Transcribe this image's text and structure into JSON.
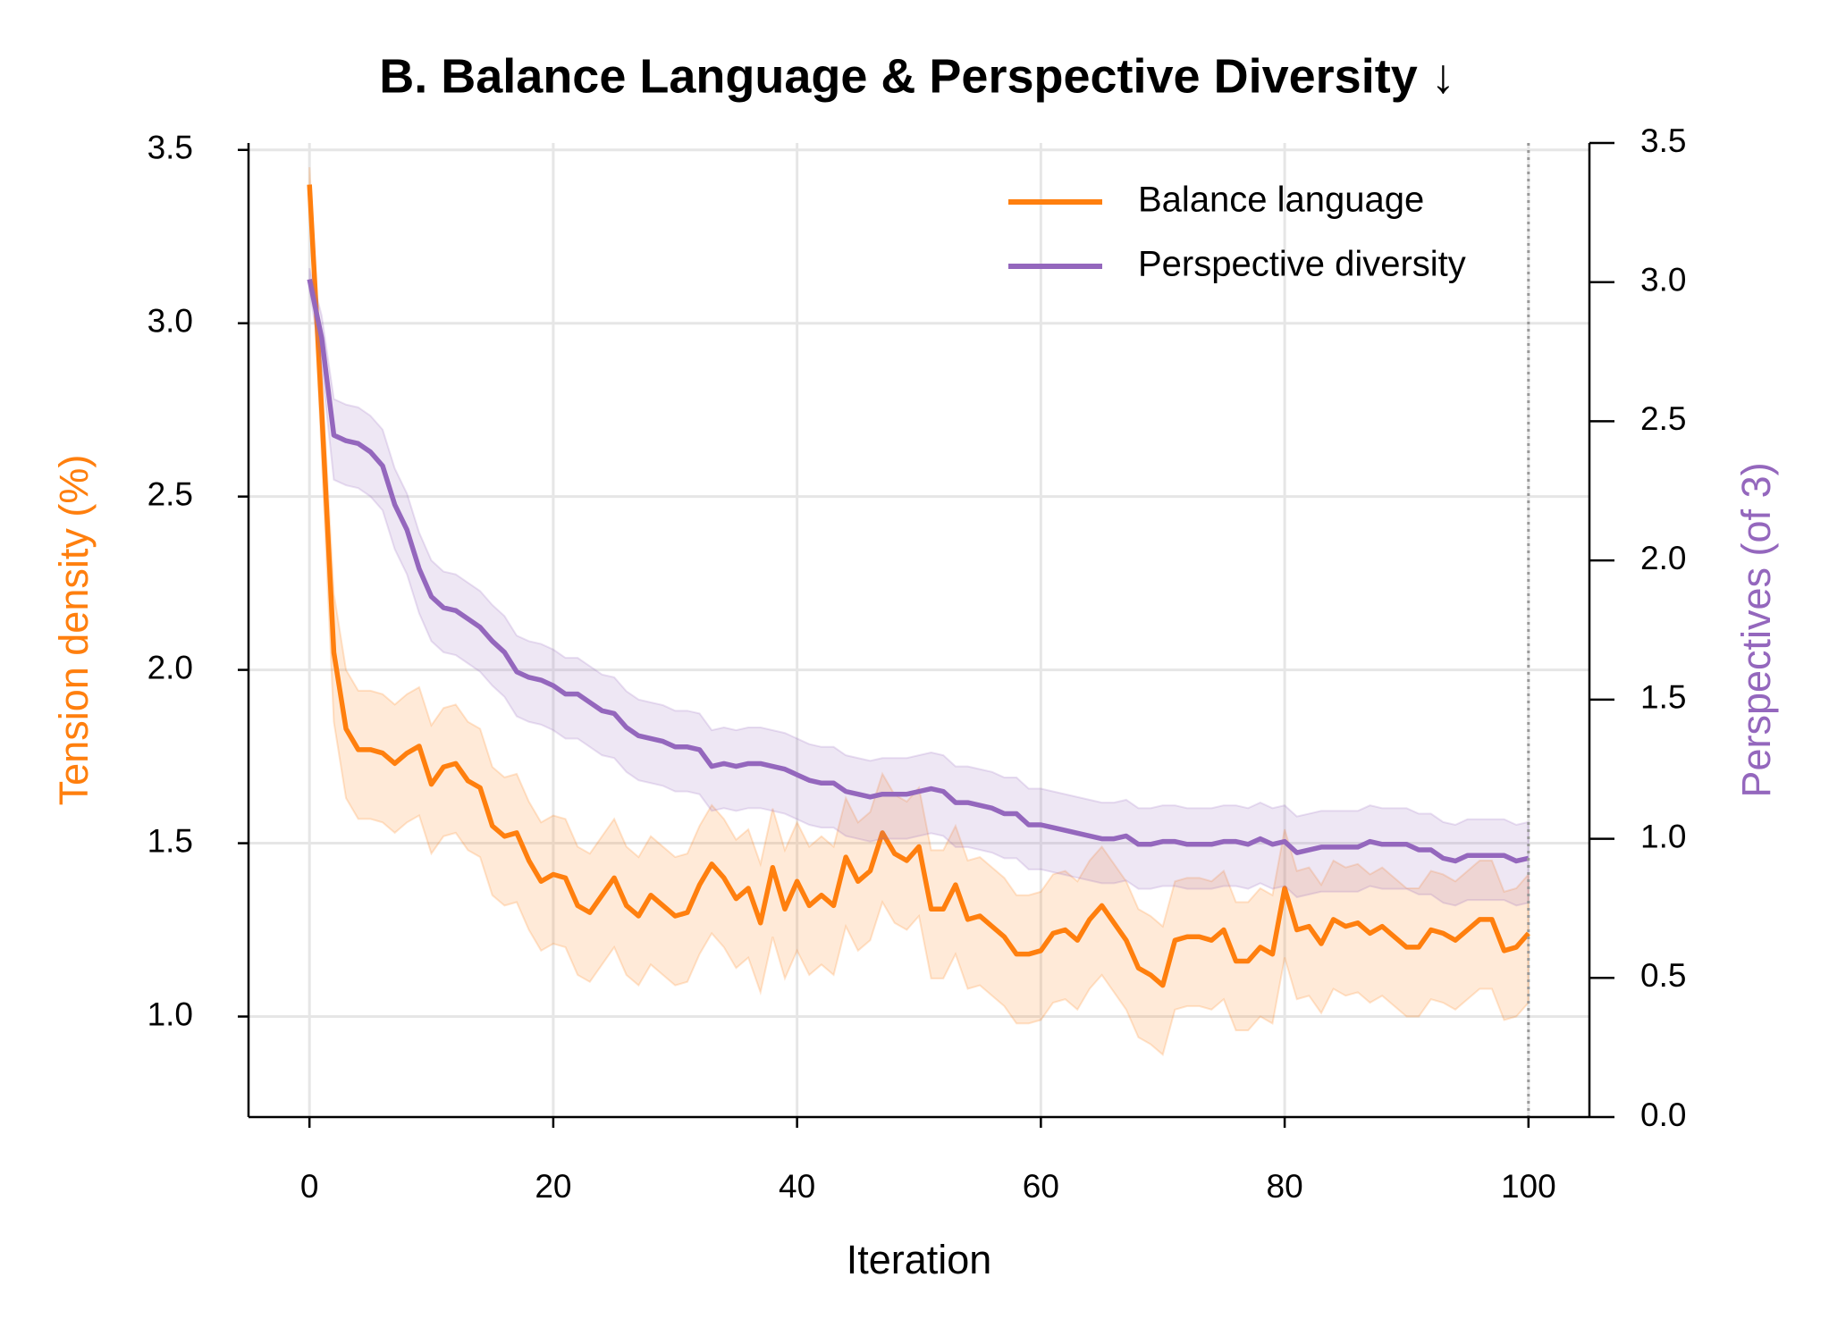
{
  "chart_data": {
    "type": "line",
    "title": "B. Balance Language & Perspective Diversity ↓",
    "xlabel": "Iteration",
    "ylabel": "Tension density (%)",
    "y2label": "Perspectives (of 3)",
    "x": [
      0,
      1,
      2,
      3,
      4,
      5,
      6,
      7,
      8,
      9,
      10,
      11,
      12,
      13,
      14,
      15,
      16,
      17,
      18,
      19,
      20,
      21,
      22,
      23,
      24,
      25,
      26,
      27,
      28,
      29,
      30,
      31,
      32,
      33,
      34,
      35,
      36,
      37,
      38,
      39,
      40,
      41,
      42,
      43,
      44,
      45,
      46,
      47,
      48,
      49,
      50,
      51,
      52,
      53,
      54,
      55,
      56,
      57,
      58,
      59,
      60,
      61,
      62,
      63,
      64,
      65,
      66,
      67,
      68,
      69,
      70,
      71,
      72,
      73,
      74,
      75,
      76,
      77,
      78,
      79,
      80,
      81,
      82,
      83,
      84,
      85,
      86,
      87,
      88,
      89,
      90,
      91,
      92,
      93,
      94,
      95,
      96,
      97,
      98,
      99,
      100
    ],
    "xlim": [
      -5,
      105
    ],
    "xticks": [
      0,
      20,
      40,
      60,
      80,
      100
    ],
    "ylim": [
      0.71,
      3.52
    ],
    "yticks": [
      {
        "value": 1.0,
        "label": "1.0"
      },
      1.5,
      {
        "value": 2.0,
        "label": "2.0"
      },
      2.5,
      {
        "value": 3.0,
        "label": "3.0"
      },
      3.5
    ],
    "y2lim": [
      0,
      3.5
    ],
    "y2ticks": [
      {
        "value": 0,
        "label": "0.0"
      },
      0.5,
      {
        "value": 1.0,
        "label": "1.0"
      },
      1.5,
      {
        "value": 2.0,
        "label": "2.0"
      },
      2.5,
      {
        "value": 3.0,
        "label": "3.0"
      },
      3.5
    ],
    "grid": true,
    "legend": "upper right",
    "vline_x": 100,
    "series": [
      {
        "name": "Balance language",
        "color": "#ff7f0e",
        "axis": "y",
        "values": [
          3.4,
          2.75,
          2.05,
          1.83,
          1.77,
          1.77,
          1.76,
          1.73,
          1.76,
          1.78,
          1.67,
          1.72,
          1.73,
          1.68,
          1.66,
          1.55,
          1.52,
          1.53,
          1.45,
          1.39,
          1.41,
          1.4,
          1.32,
          1.3,
          1.35,
          1.4,
          1.32,
          1.29,
          1.35,
          1.32,
          1.29,
          1.3,
          1.38,
          1.44,
          1.4,
          1.34,
          1.37,
          1.27,
          1.43,
          1.31,
          1.39,
          1.32,
          1.35,
          1.32,
          1.46,
          1.39,
          1.42,
          1.53,
          1.47,
          1.45,
          1.49,
          1.31,
          1.31,
          1.38,
          1.28,
          1.29,
          1.26,
          1.23,
          1.18,
          1.18,
          1.19,
          1.24,
          1.25,
          1.22,
          1.28,
          1.32,
          1.27,
          1.22,
          1.14,
          1.12,
          1.09,
          1.22,
          1.23,
          1.23,
          1.22,
          1.25,
          1.16,
          1.16,
          1.2,
          1.18,
          1.37,
          1.25,
          1.26,
          1.21,
          1.28,
          1.26,
          1.27,
          1.24,
          1.26,
          1.23,
          1.2,
          1.2,
          1.25,
          1.24,
          1.22,
          1.25,
          1.28,
          1.28,
          1.19,
          1.2,
          1.24
        ],
        "upper": [
          3.45,
          2.85,
          2.22,
          2.0,
          1.94,
          1.94,
          1.93,
          1.9,
          1.93,
          1.95,
          1.84,
          1.89,
          1.9,
          1.85,
          1.83,
          1.72,
          1.69,
          1.7,
          1.62,
          1.56,
          1.58,
          1.57,
          1.49,
          1.47,
          1.52,
          1.57,
          1.49,
          1.46,
          1.52,
          1.49,
          1.46,
          1.47,
          1.55,
          1.61,
          1.57,
          1.51,
          1.54,
          1.44,
          1.6,
          1.48,
          1.56,
          1.49,
          1.52,
          1.49,
          1.63,
          1.56,
          1.59,
          1.7,
          1.64,
          1.62,
          1.66,
          1.48,
          1.48,
          1.55,
          1.45,
          1.46,
          1.43,
          1.4,
          1.35,
          1.35,
          1.36,
          1.41,
          1.42,
          1.39,
          1.45,
          1.49,
          1.44,
          1.39,
          1.31,
          1.29,
          1.26,
          1.39,
          1.4,
          1.4,
          1.39,
          1.42,
          1.33,
          1.33,
          1.37,
          1.35,
          1.54,
          1.42,
          1.43,
          1.38,
          1.45,
          1.43,
          1.44,
          1.41,
          1.43,
          1.4,
          1.37,
          1.37,
          1.42,
          1.41,
          1.39,
          1.42,
          1.45,
          1.45,
          1.36,
          1.37,
          1.41
        ],
        "lower": [
          3.35,
          2.62,
          1.85,
          1.63,
          1.57,
          1.57,
          1.56,
          1.53,
          1.56,
          1.58,
          1.47,
          1.52,
          1.53,
          1.48,
          1.46,
          1.35,
          1.32,
          1.33,
          1.25,
          1.19,
          1.21,
          1.2,
          1.12,
          1.1,
          1.15,
          1.2,
          1.12,
          1.09,
          1.15,
          1.12,
          1.09,
          1.1,
          1.18,
          1.24,
          1.2,
          1.14,
          1.17,
          1.07,
          1.23,
          1.11,
          1.19,
          1.12,
          1.15,
          1.12,
          1.26,
          1.19,
          1.22,
          1.33,
          1.27,
          1.25,
          1.29,
          1.11,
          1.11,
          1.18,
          1.08,
          1.09,
          1.06,
          1.03,
          0.98,
          0.98,
          0.99,
          1.04,
          1.05,
          1.02,
          1.08,
          1.12,
          1.07,
          1.02,
          0.94,
          0.92,
          0.89,
          1.02,
          1.03,
          1.03,
          1.02,
          1.05,
          0.96,
          0.96,
          1.0,
          0.98,
          1.17,
          1.05,
          1.06,
          1.01,
          1.08,
          1.06,
          1.07,
          1.04,
          1.06,
          1.03,
          1.0,
          1.0,
          1.05,
          1.04,
          1.02,
          1.05,
          1.08,
          1.08,
          0.99,
          1.0,
          1.04
        ]
      },
      {
        "name": "Perspective diversity",
        "color": "#9467bd",
        "axis": "y2",
        "values": [
          3.01,
          2.8,
          2.45,
          2.43,
          2.42,
          2.39,
          2.34,
          2.2,
          2.11,
          1.97,
          1.87,
          1.83,
          1.82,
          1.79,
          1.76,
          1.71,
          1.67,
          1.6,
          1.58,
          1.57,
          1.55,
          1.52,
          1.52,
          1.49,
          1.46,
          1.45,
          1.4,
          1.37,
          1.36,
          1.35,
          1.33,
          1.33,
          1.32,
          1.26,
          1.27,
          1.26,
          1.27,
          1.27,
          1.26,
          1.25,
          1.23,
          1.21,
          1.2,
          1.2,
          1.17,
          1.16,
          1.15,
          1.16,
          1.16,
          1.16,
          1.17,
          1.18,
          1.17,
          1.13,
          1.13,
          1.12,
          1.11,
          1.09,
          1.09,
          1.05,
          1.05,
          1.04,
          1.03,
          1.02,
          1.01,
          1.0,
          1.0,
          1.01,
          0.98,
          0.98,
          0.99,
          0.99,
          0.98,
          0.98,
          0.98,
          0.99,
          0.99,
          0.98,
          1.0,
          0.98,
          0.99,
          0.95,
          0.96,
          0.97,
          0.97,
          0.97,
          0.97,
          0.99,
          0.98,
          0.98,
          0.98,
          0.96,
          0.96,
          0.93,
          0.92,
          0.94,
          0.94,
          0.94,
          0.94,
          0.92,
          0.93
        ],
        "upper": [
          3.05,
          2.88,
          2.58,
          2.56,
          2.55,
          2.52,
          2.47,
          2.33,
          2.24,
          2.1,
          2.0,
          1.96,
          1.95,
          1.92,
          1.89,
          1.84,
          1.8,
          1.73,
          1.71,
          1.7,
          1.68,
          1.65,
          1.65,
          1.62,
          1.59,
          1.58,
          1.53,
          1.5,
          1.49,
          1.48,
          1.46,
          1.46,
          1.45,
          1.39,
          1.4,
          1.39,
          1.4,
          1.4,
          1.39,
          1.38,
          1.36,
          1.34,
          1.33,
          1.33,
          1.3,
          1.29,
          1.28,
          1.29,
          1.29,
          1.29,
          1.3,
          1.31,
          1.3,
          1.26,
          1.26,
          1.25,
          1.24,
          1.22,
          1.22,
          1.18,
          1.18,
          1.17,
          1.16,
          1.15,
          1.14,
          1.13,
          1.13,
          1.14,
          1.11,
          1.11,
          1.12,
          1.12,
          1.11,
          1.11,
          1.11,
          1.12,
          1.12,
          1.11,
          1.13,
          1.11,
          1.12,
          1.08,
          1.09,
          1.1,
          1.1,
          1.1,
          1.1,
          1.12,
          1.11,
          1.11,
          1.11,
          1.09,
          1.09,
          1.06,
          1.05,
          1.07,
          1.07,
          1.07,
          1.07,
          1.05,
          1.06
        ],
        "lower": [
          2.97,
          2.7,
          2.29,
          2.27,
          2.26,
          2.23,
          2.18,
          2.04,
          1.95,
          1.81,
          1.71,
          1.67,
          1.66,
          1.63,
          1.6,
          1.55,
          1.51,
          1.44,
          1.42,
          1.41,
          1.39,
          1.36,
          1.36,
          1.33,
          1.3,
          1.29,
          1.24,
          1.21,
          1.2,
          1.19,
          1.17,
          1.17,
          1.16,
          1.1,
          1.11,
          1.1,
          1.11,
          1.11,
          1.1,
          1.09,
          1.07,
          1.05,
          1.04,
          1.04,
          1.01,
          1.0,
          0.99,
          1.0,
          1.0,
          1.0,
          1.01,
          1.02,
          1.01,
          0.97,
          0.97,
          0.96,
          0.95,
          0.93,
          0.93,
          0.89,
          0.89,
          0.88,
          0.87,
          0.86,
          0.85,
          0.84,
          0.84,
          0.85,
          0.82,
          0.82,
          0.83,
          0.83,
          0.82,
          0.82,
          0.82,
          0.83,
          0.83,
          0.82,
          0.84,
          0.82,
          0.83,
          0.79,
          0.8,
          0.81,
          0.81,
          0.81,
          0.81,
          0.83,
          0.82,
          0.82,
          0.82,
          0.8,
          0.8,
          0.77,
          0.76,
          0.78,
          0.78,
          0.78,
          0.78,
          0.76,
          0.77
        ]
      }
    ]
  }
}
